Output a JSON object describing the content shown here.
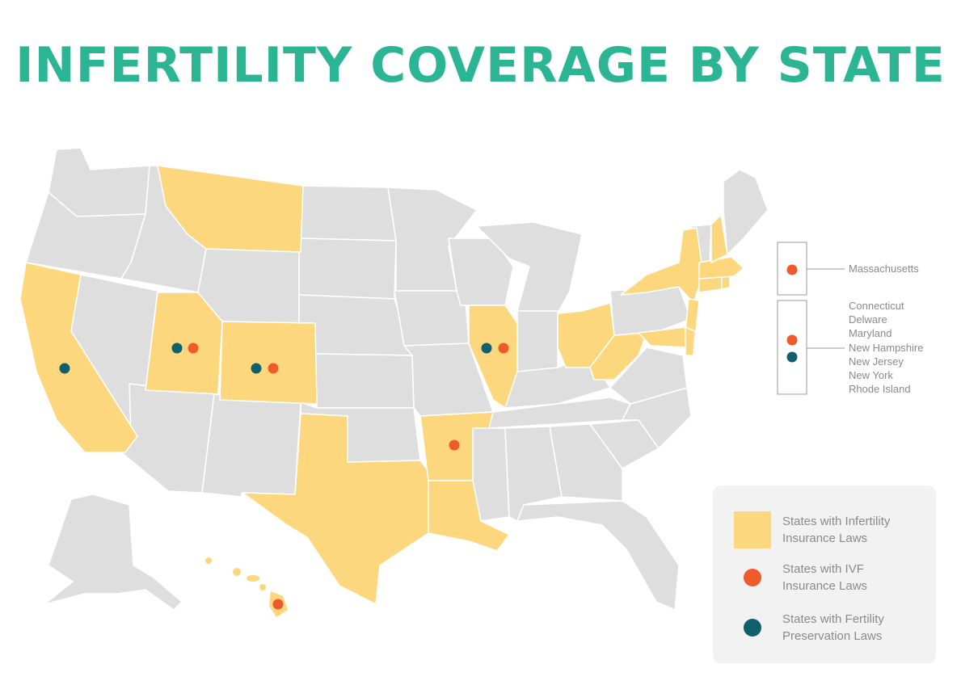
{
  "title": "INFERTILITY COVERAGE BY STATE",
  "colors": {
    "background": "#ffffff",
    "title": "#2bb594",
    "state_default": "#dedede",
    "state_infertility_law": "#fdd77d",
    "ivf_dot": "#ee5a2a",
    "fertility_preservation_dot": "#0f5f6c",
    "legend_background": "#f2f2f2",
    "label_text": "#8a8a8a"
  },
  "states_with_infertility_insurance_laws": [
    "Montana",
    "California",
    "Utah",
    "Colorado",
    "Texas",
    "Arkansas",
    "Louisiana",
    "Illinois",
    "Ohio",
    "West Virginia",
    "New York",
    "New Jersey",
    "Connecticut",
    "Rhode Island",
    "Massachusetts",
    "New Hampshire",
    "Maryland",
    "Delaware",
    "Hawaii"
  ],
  "map_markers": [
    {
      "state": "California",
      "markers": [
        "fertility-preservation"
      ]
    },
    {
      "state": "Utah",
      "markers": [
        "fertility-preservation",
        "ivf"
      ]
    },
    {
      "state": "Colorado",
      "markers": [
        "fertility-preservation",
        "ivf"
      ]
    },
    {
      "state": "Illinois",
      "markers": [
        "fertility-preservation",
        "ivf"
      ]
    },
    {
      "state": "Arkansas",
      "markers": [
        "ivf"
      ]
    },
    {
      "state": "Hawaii",
      "markers": [
        "ivf"
      ]
    }
  ],
  "northeast_callouts": [
    {
      "states": [
        "Massachusetts"
      ],
      "markers": [
        "ivf"
      ]
    },
    {
      "states": [
        "Connecticut",
        "Delware",
        "Maryland",
        "New Hampshire",
        "New Jersey",
        "New York",
        "Rhode Island"
      ],
      "markers": [
        "ivf",
        "fertility-preservation"
      ]
    }
  ],
  "legend": {
    "items": [
      {
        "kind": "infertility",
        "line1": "States with Infertility",
        "line2": "Insurance Laws"
      },
      {
        "kind": "ivf",
        "line1": "States with IVF",
        "line2": "Insurance Laws"
      },
      {
        "kind": "preservation",
        "line1": "States with Fertility",
        "line2": "Preservation Laws"
      }
    ]
  }
}
